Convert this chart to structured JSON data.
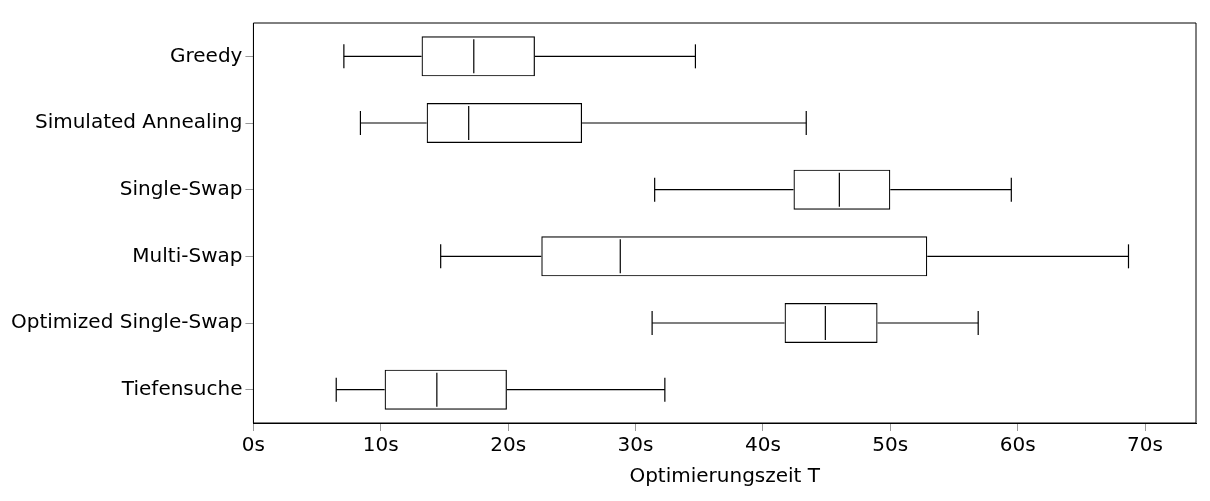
{
  "chart_data": {
    "type": "box",
    "orientation": "horizontal",
    "categories": [
      "Greedy",
      "Simulated Annealing",
      "Single-Swap",
      "Multi-Swap",
      "Optimized Single-Swap",
      "Tiefensuche"
    ],
    "boxes": [
      {
        "low": 7.1,
        "q1": 13.2,
        "median": 17.3,
        "q3": 22.1,
        "high": 34.7
      },
      {
        "low": 8.4,
        "q1": 13.6,
        "median": 16.9,
        "q3": 25.8,
        "high": 43.4
      },
      {
        "low": 31.5,
        "q1": 42.4,
        "median": 46.0,
        "q3": 50.0,
        "high": 59.5
      },
      {
        "low": 14.7,
        "q1": 22.6,
        "median": 28.8,
        "q3": 52.9,
        "high": 68.7
      },
      {
        "low": 31.3,
        "q1": 41.7,
        "median": 44.9,
        "q3": 49.0,
        "high": 56.9
      },
      {
        "low": 6.5,
        "q1": 10.3,
        "median": 14.4,
        "q3": 19.9,
        "high": 32.3
      }
    ],
    "color": "#000000",
    "xlabel": "Optimierungszeit T",
    "xlim": [
      0,
      74
    ],
    "xticks": [
      {
        "value": 0,
        "label": "0s"
      },
      {
        "value": 10,
        "label": "10s"
      },
      {
        "value": 20,
        "label": "20s"
      },
      {
        "value": 30,
        "label": "30s"
      },
      {
        "value": 40,
        "label": "40s"
      },
      {
        "value": 50,
        "label": "50s"
      },
      {
        "value": 60,
        "label": "60s"
      },
      {
        "value": 70,
        "label": "70s"
      }
    ],
    "grid": false,
    "legend": false
  }
}
